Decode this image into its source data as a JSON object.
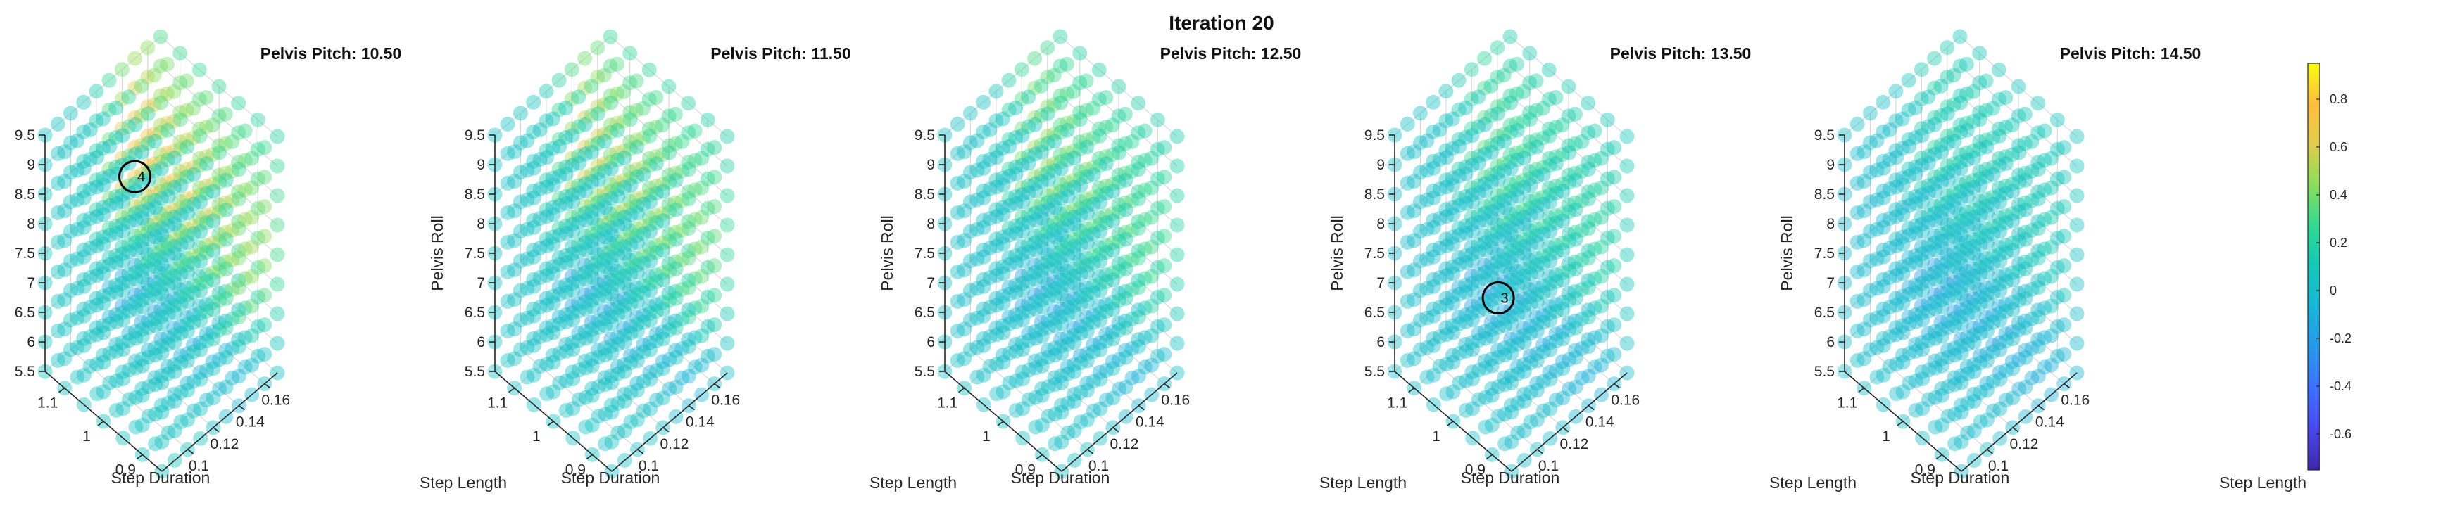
{
  "figure": {
    "suptitle": "Iteration 20"
  },
  "chart_data": {
    "type": "scatter",
    "projection": "3d",
    "grid": true,
    "axes": {
      "x": {
        "label": "Step Duration",
        "range": [
          0.85,
          1.15
        ],
        "ticks": [
          "0.9",
          "1",
          "1.1"
        ],
        "tick_values": [
          0.9,
          1.0,
          1.1
        ]
      },
      "y": {
        "label": "Step Length",
        "range": [
          0.08,
          0.17
        ],
        "ticks": [
          "0.1",
          "0.12",
          "0.14",
          "0.16"
        ],
        "tick_values": [
          0.1,
          0.12,
          0.14,
          0.16
        ]
      },
      "z": {
        "label": "Pelvis Roll",
        "range": [
          5.5,
          9.5
        ],
        "ticks": [
          "5.5",
          "6",
          "6.5",
          "7",
          "7.5",
          "8",
          "8.5",
          "9",
          "9.5"
        ],
        "tick_values": [
          5.5,
          6,
          6.5,
          7,
          7.5,
          8,
          8.5,
          9,
          9.5
        ]
      }
    },
    "panels": [
      {
        "title": "Pelvis Pitch: 10.50",
        "marker": {
          "label": "4",
          "x": 1.15,
          "y": 0.15,
          "z": 7.5
        }
      },
      {
        "title": "Pelvis Pitch: 11.50",
        "marker": null
      },
      {
        "title": "Pelvis Pitch: 12.50",
        "marker": null
      },
      {
        "title": "Pelvis Pitch: 13.50",
        "marker": {
          "label": "3",
          "x": 0.95,
          "y": 0.1,
          "z": 7.5
        }
      },
      {
        "title": "Pelvis Pitch: 14.50",
        "marker": null
      }
    ],
    "colorbar": {
      "range": [
        -0.75,
        0.95
      ],
      "ticks": [
        "-0.6",
        "-0.4",
        "-0.2",
        "0",
        "0.2",
        "0.4",
        "0.6",
        "0.8"
      ],
      "tick_values": [
        -0.6,
        -0.4,
        -0.2,
        0,
        0.2,
        0.4,
        0.6,
        0.8
      ],
      "colormap": "parula"
    }
  }
}
